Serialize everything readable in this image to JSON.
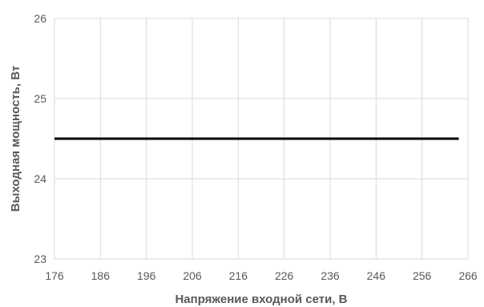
{
  "chart_data": {
    "type": "line",
    "xlabel": "Напряжение входной сети, В",
    "ylabel": "Выходная мощность, Вт",
    "x_ticks": [
      176,
      186,
      196,
      206,
      216,
      226,
      236,
      246,
      256,
      266
    ],
    "y_ticks": [
      23,
      24,
      25,
      26
    ],
    "xlim": [
      176,
      266
    ],
    "ylim": [
      23,
      26
    ],
    "grid": true,
    "legend": "none",
    "series": [
      {
        "x": [
          176,
          264
        ],
        "y": [
          24.5,
          24.5
        ],
        "color": "#000000"
      }
    ]
  }
}
